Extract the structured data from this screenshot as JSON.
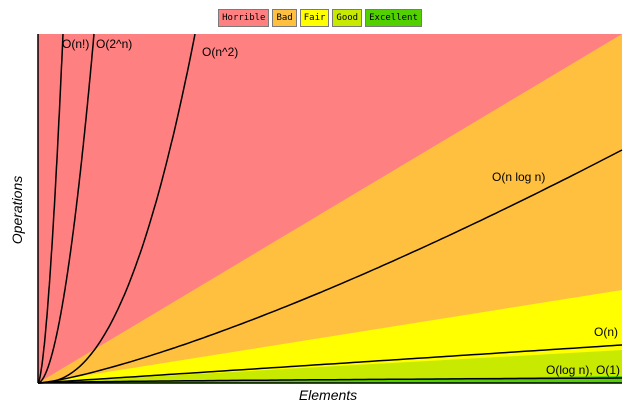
{
  "chart_data": {
    "type": "area",
    "title": "",
    "xlabel": "Elements",
    "ylabel": "Operations",
    "grid": false,
    "legend_position": "top-center",
    "legend": [
      {
        "label": "Horrible",
        "color": "#ff8080"
      },
      {
        "label": "Bad",
        "color": "#ffc040"
      },
      {
        "label": "Fair",
        "color": "#ffff00"
      },
      {
        "label": "Good",
        "color": "#c8ea00"
      },
      {
        "label": "Excellent",
        "color": "#53d000"
      }
    ],
    "curves": [
      {
        "label": "O(n!)",
        "fn": "factorial"
      },
      {
        "label": "O(2^n)",
        "fn": "exponential"
      },
      {
        "label": "O(n^2)",
        "fn": "quadratic"
      },
      {
        "label": "O(n log n)",
        "fn": "nlogn"
      },
      {
        "label": "O(n)",
        "fn": "linear"
      },
      {
        "label": "O(log n), O(1)",
        "fn": "logn"
      }
    ]
  }
}
